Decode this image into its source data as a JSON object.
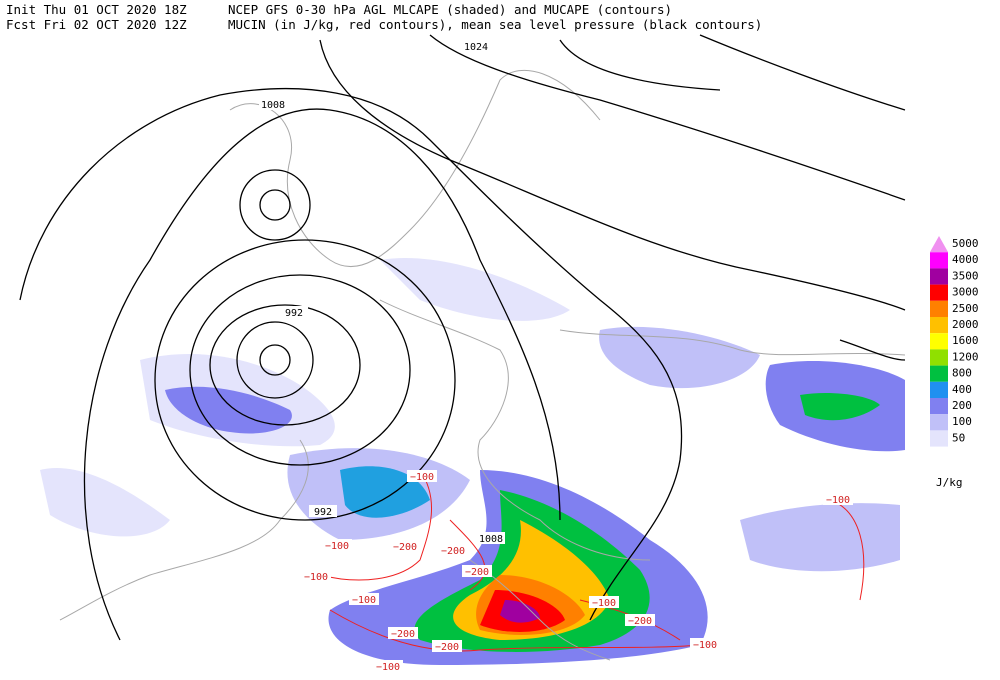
{
  "header": {
    "init": "Init  Thu 01 OCT 2020 18Z",
    "fcst": "Fcst Fri 02 OCT 2020 12Z",
    "title_line1": "NCEP GFS 0-30 hPa AGL MLCAPE (shaded) and MUCAPE (contours)",
    "title_line2": "MUCIN (in J/kg, red contours), mean sea level pressure (black contours)"
  },
  "legend": {
    "levels": [
      "5000",
      "4000",
      "3500",
      "3000",
      "2500",
      "2000",
      "1600",
      "1200",
      "800",
      "400",
      "200",
      "100",
      "50"
    ],
    "colors": [
      "#f090f0",
      "#ff00ff",
      "#a000a0",
      "#ff0000",
      "#ff8000",
      "#ffc000",
      "#ffff00",
      "#90e000",
      "#00c040",
      "#2090f0",
      "#8080f0",
      "#c0c0f8",
      "#e4e4fc"
    ],
    "unit": "J/kg"
  },
  "pressure_labels": [
    "1024",
    "1008",
    "992",
    "992",
    "1008"
  ],
  "cin_labels": [
    "−100",
    "−100",
    "−200",
    "−200",
    "−200",
    "−100",
    "−100",
    "−200",
    "−200",
    "−100",
    "−100",
    "−200",
    "−100",
    "−100"
  ]
}
